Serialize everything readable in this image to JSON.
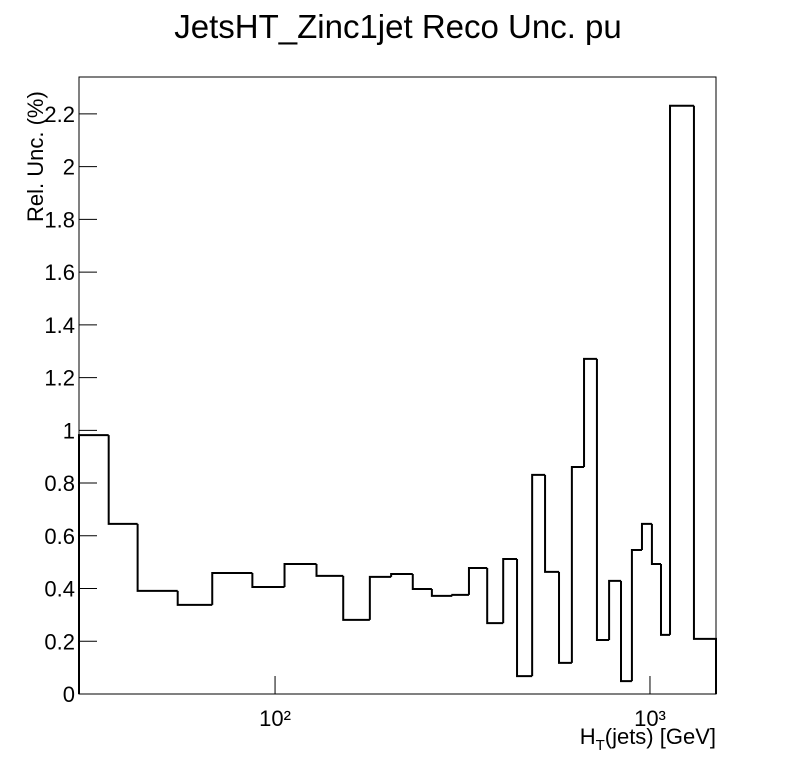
{
  "chart_data": {
    "type": "histogram",
    "title": "JetsHT_Zinc1jet Reco Unc. pu",
    "x_label": [
      "H",
      "T",
      "(jets) [GeV]"
    ],
    "y_label": "Rel. Unc. (%)",
    "bins": [
      30,
      36,
      43,
      55,
      68,
      87,
      106,
      129,
      152,
      179,
      204,
      233,
      262,
      297,
      329,
      368,
      406,
      442,
      485,
      525,
      572,
      619,
      667,
      722,
      778,
      837,
      895,
      952,
      1012,
      1070,
      1131,
      1310,
      1500
    ],
    "values": [
      0.982,
      0.645,
      0.391,
      0.338,
      0.459,
      0.406,
      0.493,
      0.448,
      0.281,
      0.444,
      0.455,
      0.398,
      0.372,
      0.376,
      0.478,
      0.269,
      0.512,
      0.068,
      0.831,
      0.463,
      0.118,
      0.861,
      1.271,
      0.205,
      0.429,
      0.049,
      0.546,
      0.645,
      0.493,
      0.224,
      2.231,
      0.209
    ],
    "color": "#000000",
    "xlog": true,
    "xlim": [
      30,
      1500
    ],
    "xticks": [
      {
        "value": 100,
        "label": "10²"
      },
      {
        "value": 1000,
        "label": "10³"
      }
    ],
    "ylim": [
      0,
      2.34
    ],
    "yticks": [
      0,
      0.2,
      0.4,
      0.6,
      0.8,
      1,
      1.2,
      1.4,
      1.6,
      1.8,
      2,
      2.2
    ]
  }
}
